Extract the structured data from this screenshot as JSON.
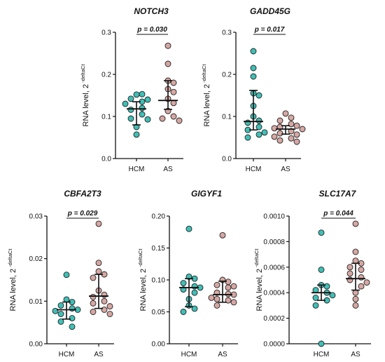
{
  "colors": {
    "hcm": "#3fbfb6",
    "as": "#d6a7a3",
    "stroke": "#222222"
  },
  "y_label": {
    "main": "RNA level, 2",
    "superscript": "-deltaCt"
  },
  "chart_data": [
    {
      "type": "scatter",
      "title": "NOTCH3",
      "p_value": "p = 0.030",
      "categories": [
        "HCM",
        "AS"
      ],
      "ylim": [
        0,
        0.3
      ],
      "yticks": [
        "0.0",
        "0.1",
        "0.2",
        "0.3"
      ],
      "tick_values": [
        0,
        0.1,
        0.2,
        0.3
      ],
      "series": [
        {
          "name": "HCM",
          "median": 0.118,
          "iqr": [
            0.08,
            0.135
          ],
          "values": [
            0.152,
            0.153,
            0.142,
            0.14,
            0.135,
            0.13,
            0.12,
            0.116,
            0.105,
            0.095,
            0.093,
            0.075,
            0.057
          ]
        },
        {
          "name": "AS",
          "median": 0.138,
          "iqr": [
            0.117,
            0.185
          ],
          "values": [
            0.268,
            0.225,
            0.185,
            0.18,
            0.165,
            0.158,
            0.142,
            0.132,
            0.113,
            0.1,
            0.095,
            0.09
          ]
        }
      ]
    },
    {
      "type": "scatter",
      "title": "GADD45G",
      "p_value": "p = 0.017",
      "categories": [
        "HCM",
        "AS"
      ],
      "ylim": [
        0,
        0.3
      ],
      "yticks": [
        "0.0",
        "0.1",
        "0.2",
        "0.3"
      ],
      "tick_values": [
        0,
        0.1,
        0.2,
        0.3
      ],
      "series": [
        {
          "name": "HCM",
          "median": 0.088,
          "iqr": [
            0.068,
            0.162
          ],
          "values": [
            0.255,
            0.215,
            0.195,
            0.155,
            0.15,
            0.125,
            0.1,
            0.09,
            0.085,
            0.075,
            0.068,
            0.062,
            0.057,
            0.05
          ]
        },
        {
          "name": "AS",
          "median": 0.07,
          "iqr": [
            0.058,
            0.078
          ],
          "values": [
            0.107,
            0.097,
            0.09,
            0.082,
            0.078,
            0.075,
            0.072,
            0.07,
            0.065,
            0.06,
            0.057,
            0.052,
            0.048,
            0.043,
            0.04
          ]
        }
      ]
    },
    {
      "type": "scatter",
      "title": "CBFA2T3",
      "p_value": "p = 0.029",
      "categories": [
        "HCM",
        "AS"
      ],
      "ylim": [
        0,
        0.03
      ],
      "yticks": [
        "0.00",
        "0.01",
        "0.02",
        "0.03"
      ],
      "tick_values": [
        0,
        0.01,
        0.02,
        0.03
      ],
      "series": [
        {
          "name": "HCM",
          "median": 0.008,
          "iqr": [
            0.0058,
            0.0098
          ],
          "values": [
            0.0162,
            0.0104,
            0.0098,
            0.009,
            0.0083,
            0.008,
            0.0077,
            0.007,
            0.006,
            0.0052,
            0.004
          ]
        },
        {
          "name": "AS",
          "median": 0.0112,
          "iqr": [
            0.0083,
            0.0163
          ],
          "values": [
            0.0282,
            0.019,
            0.017,
            0.0163,
            0.0155,
            0.0125,
            0.0115,
            0.011,
            0.01,
            0.0095,
            0.0088,
            0.008,
            0.0075,
            0.007
          ]
        }
      ]
    },
    {
      "type": "scatter",
      "title": "GIGYF1",
      "p_value": "",
      "categories": [
        "HCM",
        "AS"
      ],
      "ylim": [
        0,
        0.2
      ],
      "yticks": [
        "0.00",
        "0.05",
        "0.10",
        "0.15",
        "0.20"
      ],
      "tick_values": [
        0,
        0.05,
        0.1,
        0.15,
        0.2
      ],
      "series": [
        {
          "name": "HCM",
          "median": 0.088,
          "iqr": [
            0.058,
            0.102
          ],
          "values": [
            0.18,
            0.105,
            0.102,
            0.095,
            0.09,
            0.088,
            0.085,
            0.08,
            0.07,
            0.06,
            0.055,
            0.05
          ]
        },
        {
          "name": "AS",
          "median": 0.077,
          "iqr": [
            0.065,
            0.098
          ],
          "values": [
            0.17,
            0.1,
            0.097,
            0.092,
            0.09,
            0.088,
            0.08,
            0.078,
            0.077,
            0.072,
            0.07,
            0.068,
            0.065,
            0.06
          ]
        }
      ]
    },
    {
      "type": "scatter",
      "title": "SLC17A7",
      "p_value": "p = 0.044",
      "categories": [
        "HCM",
        "AS"
      ],
      "ylim": [
        0,
        0.001
      ],
      "yticks": [
        "0.0000",
        "0.0002",
        "0.0004",
        "0.0006",
        "0.0008",
        "0.0010"
      ],
      "tick_values": [
        0,
        0.0002,
        0.0004,
        0.0006,
        0.0008,
        0.001
      ],
      "series": [
        {
          "name": "HCM",
          "median": 0.0004,
          "iqr": [
            0.00034,
            0.00046
          ],
          "values": [
            0.00087,
            0.00058,
            0.00046,
            0.00045,
            0.00042,
            0.0004,
            0.00038,
            0.00036,
            0.00034,
            0.0003,
            0.0
          ]
        },
        {
          "name": "AS",
          "median": 0.00051,
          "iqr": [
            0.00042,
            0.00063
          ],
          "values": [
            0.00094,
            0.00072,
            0.00065,
            0.00063,
            0.0006,
            0.00058,
            0.00055,
            0.00052,
            0.0005,
            0.00048,
            0.00045,
            0.0004,
            0.00035,
            0.0003
          ]
        }
      ]
    }
  ]
}
